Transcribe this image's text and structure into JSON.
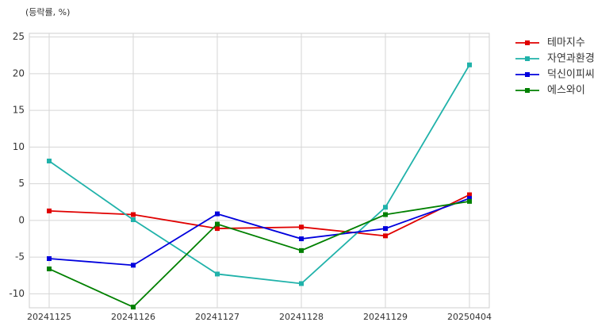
{
  "chart_data": {
    "type": "line",
    "ylabel": "(등락률, %)",
    "categories": [
      "20241125",
      "20241126",
      "20241127",
      "20241128",
      "20241129",
      "20250404"
    ],
    "series": [
      {
        "name": "테마지수",
        "color": "#e00000",
        "values": [
          1.3,
          0.8,
          -1.1,
          -0.9,
          -2.1,
          3.5
        ]
      },
      {
        "name": "자연과환경",
        "color": "#20b2aa",
        "values": [
          8.1,
          0.1,
          -7.3,
          -8.6,
          1.8,
          21.2
        ]
      },
      {
        "name": "덕신이피씨",
        "color": "#0000dd",
        "values": [
          -5.2,
          -6.1,
          0.9,
          -2.5,
          -1.1,
          3.0
        ]
      },
      {
        "name": "에스와이",
        "color": "#008000",
        "values": [
          -6.6,
          -11.8,
          -0.5,
          -4.1,
          0.8,
          2.6
        ]
      }
    ],
    "ylim": [
      -11.9,
      25.5
    ],
    "yticks": [
      -10,
      -5,
      0,
      5,
      10,
      15,
      20,
      25
    ],
    "grid": true,
    "legend": "upper right outside"
  }
}
